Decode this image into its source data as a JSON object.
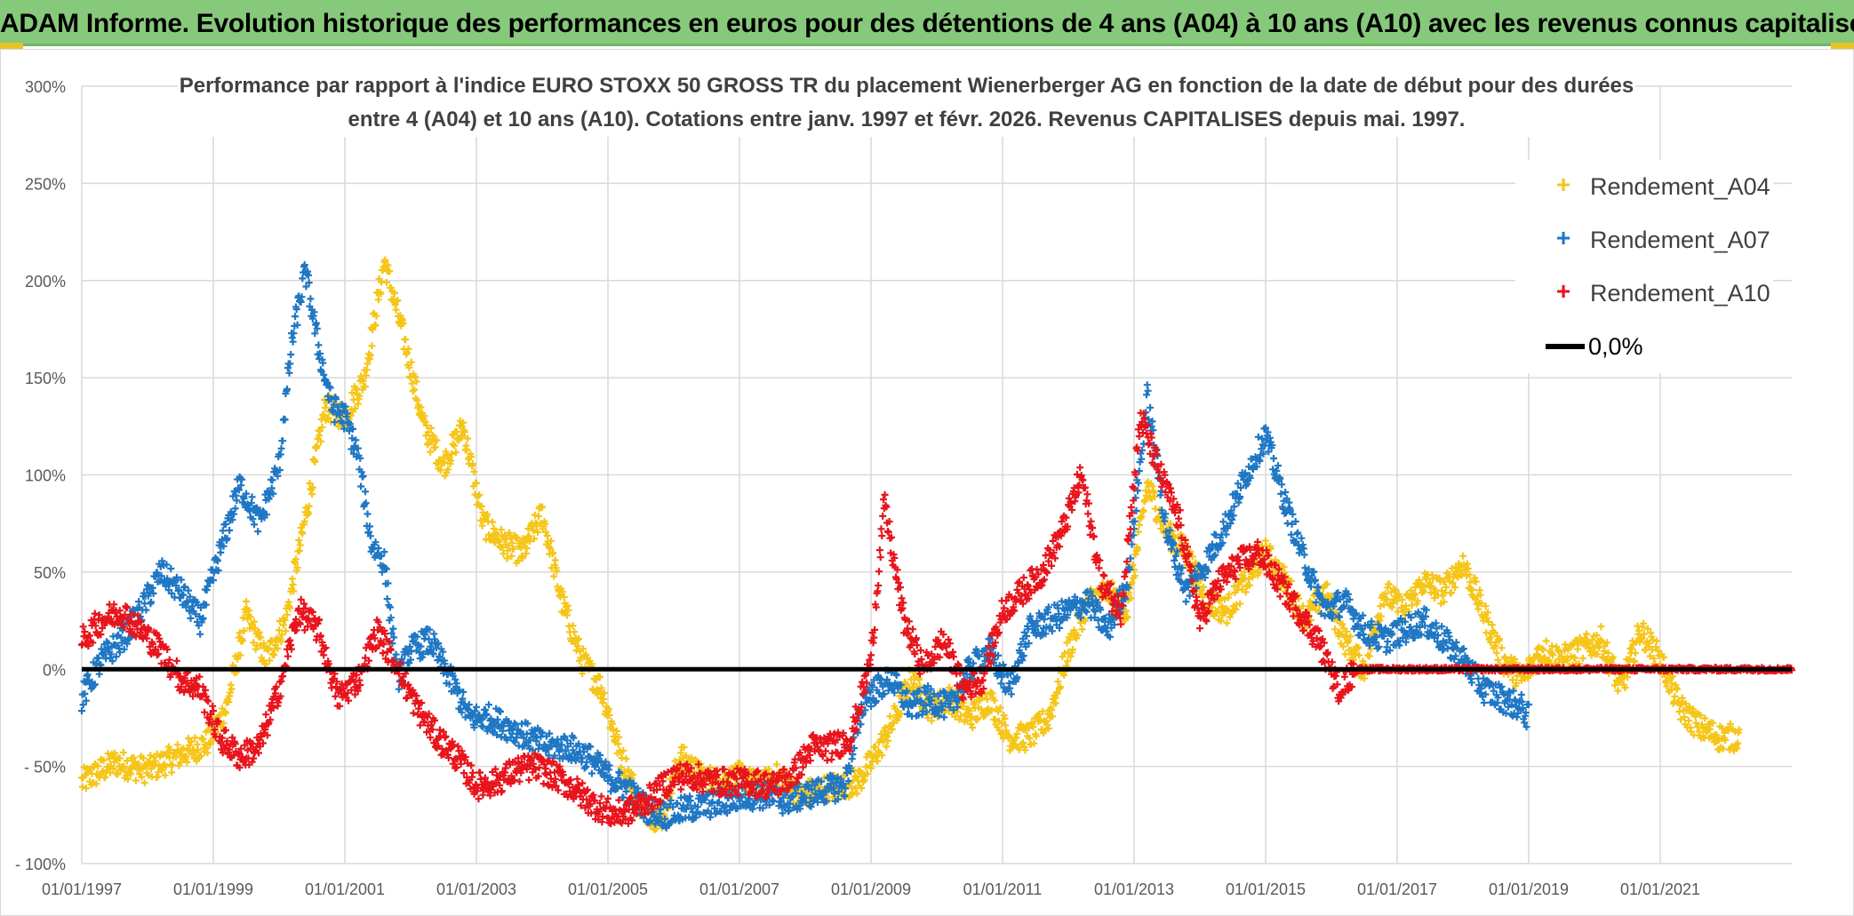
{
  "banner": {
    "text": "ADAM Informe. Evolution historique des performances en euros pour des détentions de 4 ans (A04) à 10 ans (A10) avec les revenus connus capitalisés"
  },
  "chart_data": {
    "type": "scatter",
    "title_line1": "Performance par rapport à l'indice EURO STOXX 50 GROSS TR  du placement Wienerberger AG en fonction de la date de début pour des durées",
    "title_line2": "entre 4 (A04) et 10 ans (A10). Cotations entre janv. 1997 et févr. 2026. Revenus CAPITALISES depuis mai. 1997.",
    "xlabel": "",
    "ylabel": "",
    "xlim": [
      1997.0,
      2023.0
    ],
    "ylim": [
      -100,
      300
    ],
    "y_ticks": [
      -100,
      -50,
      0,
      50,
      100,
      150,
      200,
      250,
      300
    ],
    "y_tick_labels": [
      "- 100%",
      "- 50%",
      "0%",
      "50%",
      "100%",
      "150%",
      "200%",
      "250%",
      "300%"
    ],
    "x_ticks": [
      1997,
      1999,
      2001,
      2003,
      2005,
      2007,
      2009,
      2011,
      2013,
      2015,
      2017,
      2019,
      2021
    ],
    "x_tick_labels": [
      "01/01/1997",
      "01/01/1999",
      "01/01/2001",
      "01/01/2003",
      "01/01/2005",
      "01/01/2007",
      "01/01/2009",
      "01/01/2011",
      "01/01/2013",
      "01/01/2015",
      "01/01/2017",
      "01/01/2019",
      "01/01/2021"
    ],
    "grid": true,
    "legend_position": "top-right",
    "series": [
      {
        "name": "Rendement_A04",
        "color": "#f5c518",
        "marker": "plus",
        "x": [
          1997.0,
          1997.5,
          1998.0,
          1998.5,
          1998.9,
          1999.2,
          1999.5,
          1999.8,
          2000.1,
          2000.4,
          2000.7,
          2001.0,
          2001.3,
          2001.6,
          2001.9,
          2002.2,
          2002.5,
          2002.8,
          2003.1,
          2003.4,
          2003.7,
          2004.0,
          2004.3,
          2004.6,
          2004.9,
          2005.2,
          2005.5,
          2005.8,
          2006.1,
          2006.4,
          2006.7,
          2007.0,
          2007.3,
          2007.6,
          2007.9,
          2008.2,
          2008.5,
          2008.8,
          2009.0,
          2009.3,
          2009.6,
          2009.9,
          2010.2,
          2010.5,
          2010.8,
          2011.1,
          2011.4,
          2011.7,
          2012.0,
          2012.3,
          2012.6,
          2012.9,
          2013.2,
          2013.5,
          2013.8,
          2014.1,
          2014.4,
          2014.7,
          2015.0,
          2015.3,
          2015.6,
          2015.9,
          2016.2,
          2016.5,
          2016.8,
          2017.1,
          2017.4,
          2017.7,
          2018.0,
          2018.3,
          2018.6,
          2018.9,
          2019.2,
          2019.5,
          2019.8,
          2020.1,
          2020.4,
          2020.7,
          2021.0,
          2021.3,
          2021.6,
          2021.9,
          2022.2
        ],
        "y": [
          -58,
          -48,
          -52,
          -44,
          -38,
          -20,
          28,
          5,
          25,
          78,
          135,
          130,
          150,
          210,
          170,
          125,
          105,
          125,
          75,
          65,
          60,
          80,
          35,
          5,
          -10,
          -45,
          -70,
          -78,
          -45,
          -55,
          -58,
          -55,
          -60,
          -55,
          -65,
          -62,
          -60,
          -58,
          -48,
          -30,
          -5,
          -20,
          -15,
          -25,
          -15,
          -35,
          -35,
          -25,
          10,
          35,
          40,
          30,
          95,
          70,
          60,
          35,
          30,
          45,
          60,
          45,
          25,
          40,
          15,
          0,
          40,
          30,
          45,
          40,
          55,
          30,
          5,
          -5,
          10,
          5,
          10,
          15,
          -10,
          20,
          5,
          -20,
          -30,
          -35,
          -35
        ]
      },
      {
        "name": "Rendement_A07",
        "color": "#1f77c4",
        "marker": "plus",
        "x": [
          1997.0,
          1997.3,
          1997.6,
          1997.9,
          1998.2,
          1998.5,
          1998.8,
          1999.1,
          1999.4,
          1999.7,
          2000.0,
          2000.2,
          2000.4,
          2000.6,
          2000.8,
          2001.0,
          2001.2,
          2001.4,
          2001.6,
          2001.8,
          2002.0,
          2002.3,
          2002.6,
          2002.9,
          2003.2,
          2003.5,
          2003.8,
          2004.1,
          2004.4,
          2004.7,
          2005.0,
          2005.3,
          2005.6,
          2005.9,
          2006.2,
          2006.5,
          2006.8,
          2007.1,
          2007.4,
          2007.7,
          2008.0,
          2008.3,
          2008.6,
          2008.9,
          2009.1,
          2009.3,
          2009.6,
          2009.9,
          2010.2,
          2010.5,
          2010.8,
          2011.1,
          2011.4,
          2011.7,
          2012.0,
          2012.3,
          2012.6,
          2012.9,
          2013.2,
          2013.5,
          2013.8,
          2014.1,
          2014.4,
          2014.7,
          2015.0,
          2015.3,
          2015.6,
          2015.9,
          2016.2,
          2016.5,
          2016.8,
          2017.1,
          2017.4,
          2017.7,
          2018.0,
          2018.3,
          2018.6,
          2018.9,
          2019.0
        ],
        "y": [
          -15,
          5,
          15,
          30,
          50,
          40,
          25,
          60,
          95,
          75,
          105,
          170,
          205,
          165,
          135,
          130,
          110,
          65,
          55,
          -5,
          10,
          15,
          -5,
          -25,
          -25,
          -30,
          -35,
          -40,
          -40,
          -45,
          -55,
          -62,
          -72,
          -75,
          -72,
          -70,
          -68,
          -65,
          -65,
          -68,
          -65,
          -62,
          -60,
          -15,
          -10,
          -5,
          -20,
          -15,
          -20,
          0,
          10,
          -10,
          20,
          25,
          30,
          35,
          20,
          45,
          140,
          70,
          40,
          55,
          75,
          100,
          120,
          85,
          55,
          30,
          35,
          20,
          15,
          20,
          25,
          15,
          5,
          -10,
          -15,
          -20,
          -25
        ]
      },
      {
        "name": "Rendement_A10",
        "color": "#e8141c",
        "marker": "plus",
        "x": [
          1997.0,
          1997.3,
          1997.6,
          1997.9,
          1998.2,
          1998.5,
          1998.8,
          1999.1,
          1999.4,
          1999.7,
          2000.0,
          2000.3,
          2000.6,
          2000.9,
          2001.2,
          2001.5,
          2001.8,
          2002.1,
          2002.4,
          2002.7,
          2003.0,
          2003.3,
          2003.6,
          2003.9,
          2004.2,
          2004.5,
          2004.8,
          2005.1,
          2005.4,
          2005.7,
          2006.0,
          2006.3,
          2006.6,
          2006.9,
          2007.2,
          2007.5,
          2007.8,
          2008.1,
          2008.4,
          2008.7,
          2009.0,
          2009.2,
          2009.5,
          2009.8,
          2010.1,
          2010.4,
          2010.7,
          2011.0,
          2011.3,
          2011.6,
          2011.9,
          2012.2,
          2012.5,
          2012.8,
          2013.1,
          2013.4,
          2013.7,
          2014.0,
          2014.3,
          2014.6,
          2014.9,
          2015.2,
          2015.5,
          2015.8,
          2016.1,
          2016.4,
          2017.0,
          2018.0,
          2019.0,
          2020.0,
          2021.0,
          2022.0,
          2023.0
        ],
        "y": [
          15,
          25,
          30,
          20,
          10,
          -5,
          -10,
          -35,
          -45,
          -40,
          -10,
          30,
          20,
          -15,
          -5,
          20,
          0,
          -20,
          -35,
          -45,
          -60,
          -58,
          -52,
          -50,
          -55,
          -62,
          -70,
          -75,
          -72,
          -65,
          -55,
          -55,
          -58,
          -58,
          -58,
          -60,
          -55,
          -40,
          -40,
          -35,
          5,
          85,
          25,
          0,
          15,
          -10,
          -5,
          30,
          40,
          50,
          70,
          100,
          45,
          30,
          130,
          100,
          75,
          25,
          45,
          55,
          60,
          45,
          30,
          15,
          -10,
          0,
          0,
          0,
          0,
          0,
          0,
          0,
          0
        ]
      },
      {
        "name": "0,0%",
        "color": "#000000",
        "marker": "line",
        "x": [
          1997.0,
          2023.0
        ],
        "y": [
          0,
          0
        ]
      }
    ]
  }
}
